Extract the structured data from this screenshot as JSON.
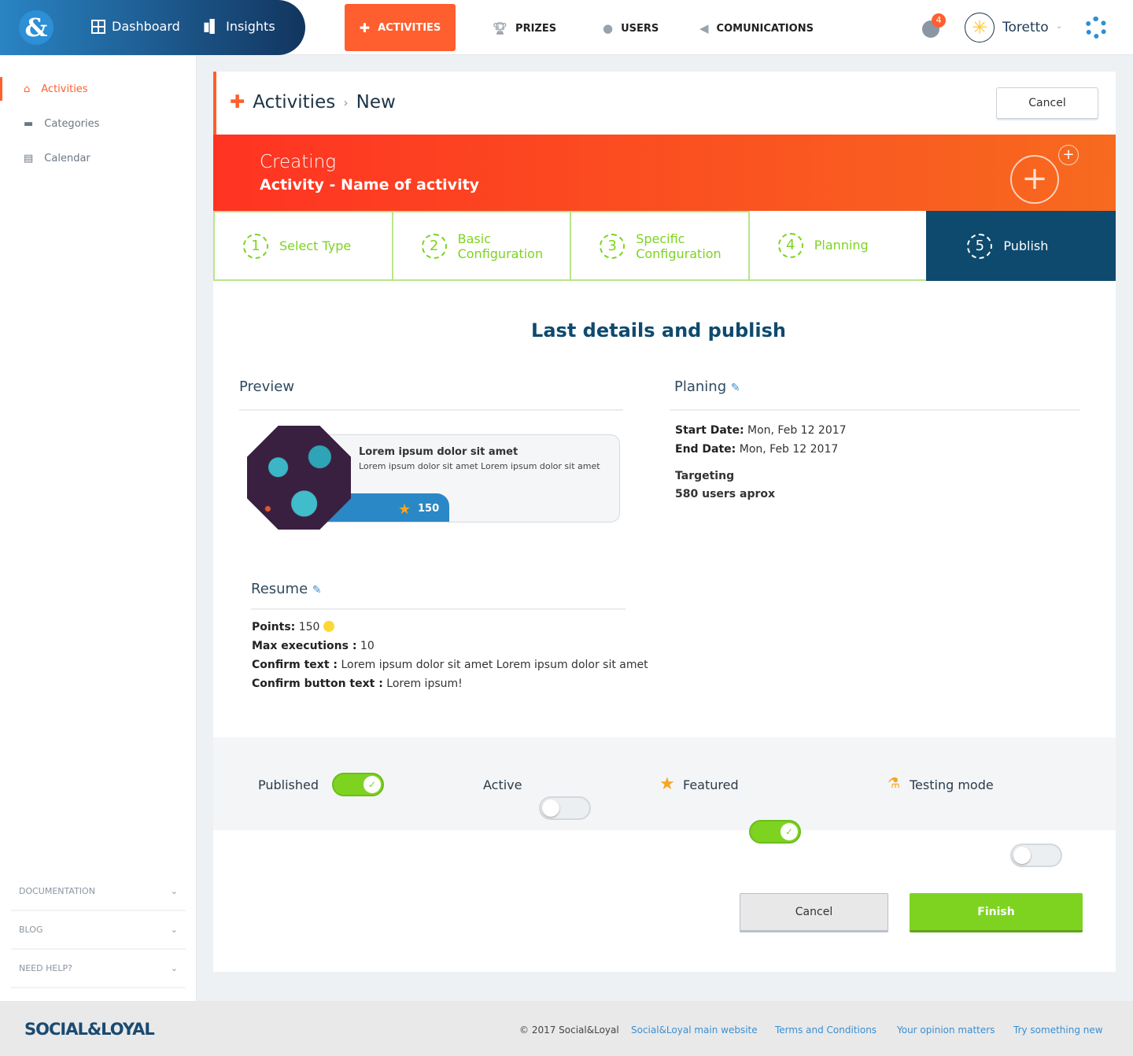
{
  "topnav": {
    "logo": "&",
    "dashboard": "Dashboard",
    "insights": "Insights",
    "activities": "ACTIVITIES",
    "prizes": "PRIZES",
    "users": "USERS",
    "communications": "COMUNICATIONS",
    "notif_count": "4",
    "username": "Toretto"
  },
  "sidebar": {
    "items": [
      {
        "label": "Activities",
        "icon": "home-icon"
      },
      {
        "label": "Categories",
        "icon": "categories-icon"
      },
      {
        "label": "Calendar",
        "icon": "calendar-icon"
      }
    ],
    "footer": [
      "DOCUMENTATION",
      "BLOG",
      "NEED HELP?"
    ]
  },
  "header": {
    "crumb1": "Activities",
    "crumb2": "New",
    "cancel": "Cancel"
  },
  "banner": {
    "line1": "Creating",
    "line2": "Activity - Name of activity"
  },
  "steps": [
    {
      "n": "1",
      "label": "Select Type"
    },
    {
      "n": "2",
      "label": "Basic Configuration"
    },
    {
      "n": "3",
      "label": "Specific Configuration"
    },
    {
      "n": "4",
      "label": "Planning"
    },
    {
      "n": "5",
      "label": "Publish"
    }
  ],
  "main": {
    "title": "Last details and publish",
    "preview": "Preview",
    "planing": "Planing",
    "resume": "Resume"
  },
  "preview_card": {
    "title": "Lorem ipsum dolor sit amet",
    "text": "Lorem ipsum dolor sit amet Lorem ipsum dolor sit amet",
    "points": "150"
  },
  "planning": {
    "start_label": "Start Date:",
    "start": "Mon, Feb 12 2017",
    "end_label": "End Date:",
    "end": "Mon, Feb 12 2017",
    "targeting": "Targeting",
    "users": "580 users aprox"
  },
  "resume": {
    "points_label": "Points:",
    "points": "150",
    "max_label": "Max executions :",
    "max": "10",
    "confirm_label": "Confirm text :",
    "confirm": "Lorem ipsum dolor sit amet Lorem ipsum dolor sit amet",
    "btn_label": "Confirm button text :",
    "btn": "Lorem ipsum!"
  },
  "toggles": [
    {
      "label": "Published",
      "on": true
    },
    {
      "label": "Active",
      "on": false
    },
    {
      "label": "Featured",
      "on": true
    },
    {
      "label": "Testing mode",
      "on": false
    }
  ],
  "actions": {
    "cancel": "Cancel",
    "finish": "Finish"
  },
  "colors": {
    "accent": "#ff5f2e",
    "green": "#7ed321",
    "navy": "#0e4a6e"
  },
  "footer": {
    "brand": "SOCIAL&LOYAL",
    "copyright": "© 2017 Social&Loyal",
    "links": [
      "Social&Loyal main website",
      "Terms and Conditions",
      "Your opinion matters",
      "Try something new"
    ]
  }
}
